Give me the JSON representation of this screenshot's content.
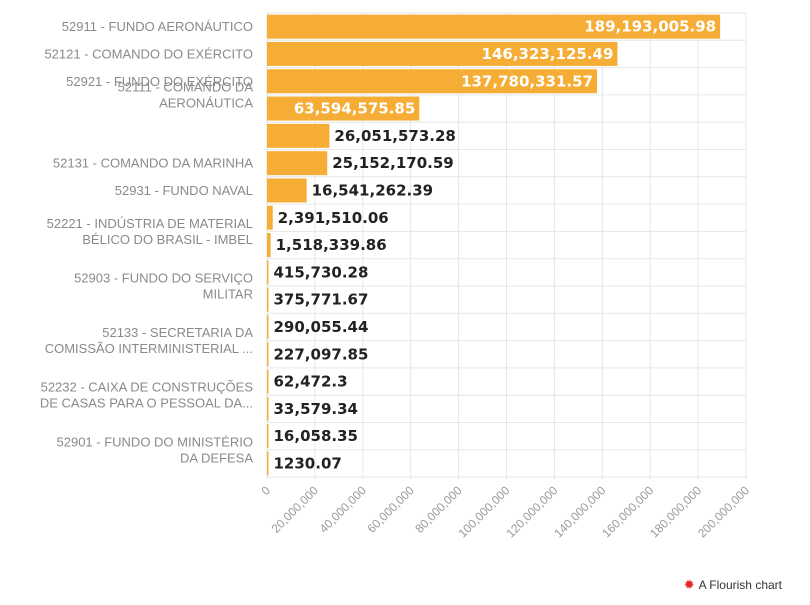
{
  "chart_data": {
    "type": "bar",
    "orientation": "horizontal",
    "title": "",
    "xlabel": "",
    "ylabel": "",
    "xlim": [
      0,
      200000000
    ],
    "ticks": [
      {
        "value": 0,
        "label": "0"
      },
      {
        "value": 20000000,
        "label": "20,000,000"
      },
      {
        "value": 40000000,
        "label": "40,000,000"
      },
      {
        "value": 60000000,
        "label": "60,000,000"
      },
      {
        "value": 80000000,
        "label": "80,000,000"
      },
      {
        "value": 100000000,
        "label": "100,000,000"
      },
      {
        "value": 120000000,
        "label": "120,000,000"
      },
      {
        "value": 140000000,
        "label": "140,000,000"
      },
      {
        "value": 160000000,
        "label": "160,000,000"
      },
      {
        "value": 180000000,
        "label": "180,000,000"
      },
      {
        "value": 200000000,
        "label": "200,000,000"
      }
    ],
    "bar_color": "#f5ad35",
    "grid": true,
    "bars": [
      {
        "label": [
          "52911 - FUNDO AERONÁUTICO"
        ],
        "value": 189193005.98,
        "value_label": "189,193,005.98"
      },
      {
        "label": [
          "52121 - COMANDO DO EXÉRCITO"
        ],
        "value": 146323125.49,
        "value_label": "146,323,125.49"
      },
      {
        "label": [
          "52921 - FUNDO DO EXÉRCITO"
        ],
        "value": 137780331.57,
        "value_label": "137,780,331.57"
      },
      {
        "label": [
          "52111 - COMANDO DA",
          "AERONÁUTICA"
        ],
        "value": 63594575.85,
        "value_label": "63,594,575.85"
      },
      {
        "label": [],
        "value": 26051573.28,
        "value_label": "26,051,573.28"
      },
      {
        "label": [
          "52131 - COMANDO DA MARINHA"
        ],
        "value": 25152170.59,
        "value_label": "25,152,170.59"
      },
      {
        "label": [
          "52931 - FUNDO NAVAL"
        ],
        "value": 16541262.39,
        "value_label": "16,541,262.39"
      },
      {
        "label": [],
        "value": 2391510.06,
        "value_label": "2,391,510.06"
      },
      {
        "label": [
          "52221 - INDÚSTRIA DE MATERIAL",
          "BÉLICO DO BRASIL - IMBEL"
        ],
        "value": 1518339.86,
        "value_label": "1,518,339.86"
      },
      {
        "label": [],
        "value": 415730.28,
        "value_label": "415,730.28"
      },
      {
        "label": [
          "52903 - FUNDO DO SERVIÇO",
          "MILITAR"
        ],
        "value": 375771.67,
        "value_label": "375,771.67"
      },
      {
        "label": [],
        "value": 290055.44,
        "value_label": "290,055.44"
      },
      {
        "label": [
          "52133 - SECRETARIA DA",
          "COMISSÃO INTERMINISTERIAL ..."
        ],
        "value": 227097.85,
        "value_label": "227,097.85"
      },
      {
        "label": [],
        "value": 62472.3,
        "value_label": "62,472.3"
      },
      {
        "label": [
          "52232 - CAIXA DE CONSTRUÇÕES",
          "DE CASAS PARA O PESSOAL DA..."
        ],
        "value": 33579.34,
        "value_label": "33,579.34"
      },
      {
        "label": [],
        "value": 16058.35,
        "value_label": "16,058.35"
      },
      {
        "label": [
          "52901 - FUNDO DO MINISTÉRIO",
          "DA DEFESA"
        ],
        "value": 1230.07,
        "value_label": "1230.07"
      }
    ]
  },
  "footer": {
    "logo_icon": "flourish-logo-icon",
    "text": "A Flourish chart"
  }
}
